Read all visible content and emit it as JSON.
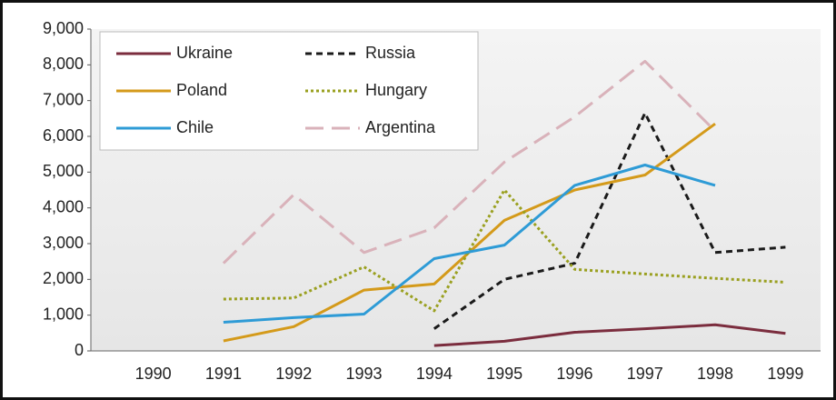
{
  "chart_data": {
    "type": "line",
    "categories": [
      "1990",
      "1991",
      "1992",
      "1993",
      "1994",
      "1995",
      "1996",
      "1997",
      "1998",
      "1999"
    ],
    "series": [
      {
        "name": "Ukraine",
        "color": "#7b2d3e",
        "dash": "solid",
        "values": [
          null,
          null,
          null,
          null,
          150,
          270,
          520,
          620,
          730,
          490
        ]
      },
      {
        "name": "Russia",
        "color": "#1a1a1a",
        "dash": "dashed",
        "values": [
          null,
          null,
          null,
          null,
          620,
          2000,
          2450,
          6650,
          2750,
          2900
        ]
      },
      {
        "name": "Poland",
        "color": "#d49a1a",
        "dash": "solid",
        "values": [
          null,
          280,
          680,
          1700,
          1870,
          3650,
          4500,
          4920,
          6350,
          null
        ]
      },
      {
        "name": "Hungary",
        "color": "#9aa020",
        "dash": "dotted",
        "values": [
          null,
          1450,
          1480,
          2350,
          1120,
          4500,
          2280,
          2150,
          2030,
          1920
        ]
      },
      {
        "name": "Chile",
        "color": "#2e9bd6",
        "dash": "solid",
        "values": [
          null,
          800,
          930,
          1030,
          2580,
          2960,
          4630,
          5200,
          4630,
          null
        ]
      },
      {
        "name": "Argentina",
        "color": "#d9b2ba",
        "dash": "longdash",
        "values": [
          null,
          2450,
          4370,
          2750,
          3440,
          5280,
          6550,
          8100,
          6150,
          null
        ]
      }
    ],
    "ylim": [
      0,
      9000
    ],
    "yticks": [
      0,
      {
        "value": 1000,
        "label": "1,000"
      },
      {
        "value": 2000,
        "label": "2,000"
      },
      {
        "value": 3000,
        "label": "3,000"
      },
      {
        "value": 4000,
        "label": "4,000"
      },
      {
        "value": 5000,
        "label": "5,000"
      },
      {
        "value": 6000,
        "label": "6,000"
      },
      {
        "value": 7000,
        "label": "7,000"
      },
      {
        "value": 8000,
        "label": "8,000"
      },
      {
        "value": 9000,
        "label": "9,000"
      }
    ],
    "grid": false,
    "legend": "upper left"
  }
}
